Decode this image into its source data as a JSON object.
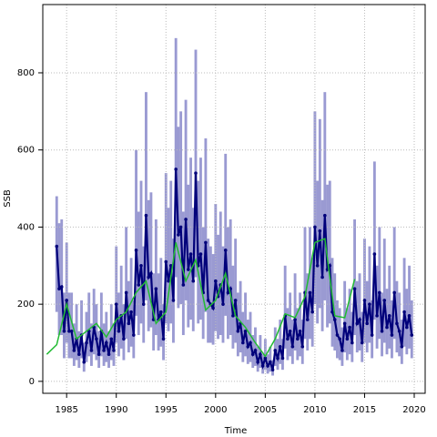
{
  "chart_data": {
    "type": "line",
    "xlabel": "Time",
    "ylabel": "SSB",
    "xlim": [
      1982.6,
      2021.1
    ],
    "ylim": [
      -31,
      977
    ],
    "xticks": [
      1985,
      1990,
      1995,
      2000,
      2005,
      2010,
      2015,
      2020
    ],
    "yticks": [
      0,
      200,
      400,
      600,
      800
    ],
    "grid": true,
    "series": [
      {
        "color": "#00007a",
        "band_color": "#9a9ad2",
        "markers": true,
        "x": [
          1984,
          1984.25,
          1984.5,
          1984.75,
          1985,
          1985.25,
          1985.5,
          1985.75,
          1986,
          1986.25,
          1986.5,
          1986.75,
          1987,
          1987.25,
          1987.5,
          1987.75,
          1988,
          1988.25,
          1988.5,
          1988.75,
          1989,
          1989.25,
          1989.5,
          1989.75,
          1990,
          1990.25,
          1990.5,
          1990.75,
          1991,
          1991.25,
          1991.5,
          1991.75,
          1992,
          1992.25,
          1992.5,
          1992.75,
          1993,
          1993.25,
          1993.5,
          1993.75,
          1994,
          1994.25,
          1994.5,
          1994.75,
          1995,
          1995.25,
          1995.5,
          1995.75,
          1996,
          1996.25,
          1996.5,
          1996.75,
          1997,
          1997.25,
          1997.5,
          1997.75,
          1998,
          1998.25,
          1998.5,
          1998.75,
          1999,
          1999.25,
          1999.5,
          1999.75,
          2000,
          2000.25,
          2000.5,
          2000.75,
          2001,
          2001.25,
          2001.5,
          2001.75,
          2002,
          2002.25,
          2002.5,
          2002.75,
          2003,
          2003.25,
          2003.5,
          2003.75,
          2004,
          2004.25,
          2004.5,
          2004.75,
          2005,
          2005.25,
          2005.5,
          2005.75,
          2006,
          2006.25,
          2006.5,
          2006.75,
          2007,
          2007.25,
          2007.5,
          2007.75,
          2008,
          2008.25,
          2008.5,
          2008.75,
          2009,
          2009.25,
          2009.5,
          2009.75,
          2010,
          2010.25,
          2010.5,
          2010.75,
          2011,
          2011.25,
          2011.5,
          2011.75,
          2012,
          2012.25,
          2012.5,
          2012.75,
          2013,
          2013.25,
          2013.5,
          2013.75,
          2014,
          2014.25,
          2014.5,
          2014.75,
          2015,
          2015.25,
          2015.5,
          2015.75,
          2016,
          2016.25,
          2016.5,
          2016.75,
          2017,
          2017.25,
          2017.5,
          2017.75,
          2018,
          2018.25,
          2018.5,
          2018.75,
          2019,
          2019.25,
          2019.5,
          2019.75
        ],
        "values": [
          350,
          240,
          245,
          130,
          210,
          130,
          130,
          80,
          110,
          70,
          120,
          50,
          100,
          130,
          80,
          140,
          110,
          70,
          130,
          80,
          100,
          70,
          110,
          80,
          200,
          130,
          170,
          110,
          230,
          150,
          180,
          120,
          340,
          250,
          300,
          200,
          430,
          270,
          280,
          160,
          240,
          160,
          180,
          110,
          310,
          260,
          300,
          210,
          550,
          380,
          400,
          250,
          420,
          290,
          330,
          260,
          540,
          300,
          330,
          230,
          360,
          210,
          200,
          190,
          260,
          220,
          250,
          200,
          340,
          230,
          240,
          170,
          210,
          130,
          150,
          100,
          130,
          90,
          100,
          70,
          80,
          50,
          70,
          40,
          60,
          40,
          50,
          30,
          80,
          60,
          90,
          60,
          170,
          110,
          130,
          90,
          160,
          110,
          130,
          90,
          230,
          160,
          230,
          180,
          400,
          300,
          390,
          270,
          430,
          290,
          300,
          180,
          160,
          120,
          110,
          80,
          150,
          110,
          140,
          100,
          240,
          150,
          160,
          100,
          210,
          150,
          200,
          120,
          330,
          170,
          230,
          130,
          210,
          140,
          170,
          120,
          230,
          150,
          130,
          90,
          180,
          140,
          170,
          120
        ],
        "upper": [
          480,
          410,
          420,
          230,
          360,
          230,
          230,
          150,
          200,
          130,
          210,
          100,
          180,
          230,
          150,
          240,
          200,
          130,
          230,
          150,
          180,
          130,
          200,
          150,
          350,
          230,
          300,
          200,
          400,
          260,
          320,
          210,
          600,
          440,
          520,
          350,
          750,
          470,
          490,
          280,
          420,
          280,
          320,
          200,
          540,
          450,
          520,
          370,
          890,
          660,
          700,
          440,
          730,
          510,
          580,
          450,
          860,
          520,
          580,
          400,
          630,
          370,
          350,
          330,
          460,
          380,
          440,
          350,
          590,
          400,
          420,
          300,
          370,
          230,
          260,
          180,
          230,
          160,
          180,
          120,
          140,
          90,
          120,
          70,
          110,
          70,
          90,
          55,
          140,
          110,
          160,
          110,
          300,
          190,
          230,
          160,
          280,
          190,
          230,
          160,
          400,
          280,
          400,
          320,
          700,
          520,
          680,
          470,
          750,
          510,
          520,
          320,
          280,
          210,
          190,
          140,
          260,
          190,
          240,
          180,
          420,
          260,
          280,
          180,
          370,
          260,
          350,
          210,
          570,
          300,
          400,
          230,
          370,
          240,
          300,
          210,
          400,
          260,
          230,
          160,
          320,
          240,
          300,
          210
        ],
        "lower": [
          180,
          120,
          120,
          60,
          100,
          60,
          60,
          40,
          55,
          35,
          60,
          25,
          50,
          65,
          40,
          70,
          55,
          35,
          65,
          40,
          50,
          35,
          55,
          40,
          100,
          65,
          85,
          55,
          110,
          75,
          90,
          60,
          170,
          120,
          150,
          100,
          210,
          130,
          140,
          80,
          120,
          80,
          90,
          55,
          150,
          130,
          150,
          100,
          270,
          190,
          200,
          120,
          210,
          140,
          160,
          130,
          270,
          150,
          160,
          110,
          180,
          100,
          100,
          95,
          130,
          110,
          120,
          100,
          170,
          110,
          120,
          85,
          100,
          65,
          75,
          50,
          65,
          45,
          50,
          35,
          40,
          25,
          35,
          20,
          30,
          20,
          25,
          15,
          40,
          30,
          45,
          30,
          85,
          55,
          65,
          45,
          80,
          55,
          65,
          45,
          110,
          80,
          110,
          90,
          200,
          150,
          190,
          130,
          210,
          140,
          150,
          90,
          80,
          60,
          55,
          40,
          75,
          55,
          70,
          50,
          120,
          75,
          80,
          50,
          100,
          75,
          100,
          60,
          160,
          85,
          110,
          65,
          100,
          70,
          85,
          60,
          110,
          75,
          65,
          45,
          90,
          70,
          85,
          60
        ]
      },
      {
        "color": "#22bb33",
        "markers": false,
        "x": [
          1983,
          1984,
          1985,
          1986,
          1987,
          1988,
          1989,
          1990,
          1991,
          1992,
          1993,
          1994,
          1995,
          1996,
          1997,
          1998,
          1999,
          2000,
          2001,
          2002,
          2003,
          2004,
          2005,
          2006,
          2007,
          2008,
          2009,
          2010,
          2011,
          2012,
          2013,
          2014
        ],
        "values": [
          70,
          95,
          200,
          110,
          130,
          150,
          115,
          160,
          180,
          230,
          260,
          150,
          180,
          360,
          260,
          315,
          185,
          210,
          280,
          170,
          140,
          100,
          65,
          110,
          175,
          165,
          220,
          360,
          370,
          170,
          165,
          265
        ]
      }
    ]
  }
}
